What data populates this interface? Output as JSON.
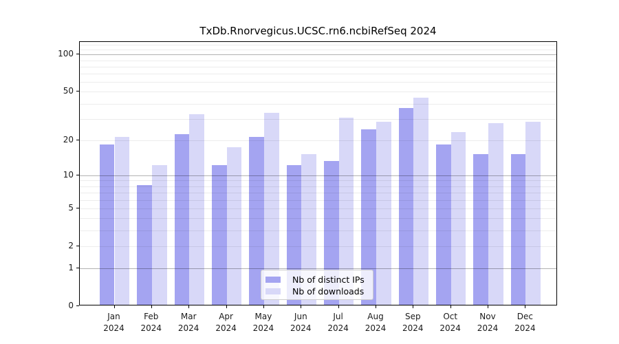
{
  "title": "TxDb.Rnorvegicus.UCSC.rn6.ncbiRefSeq 2024",
  "chart_data": {
    "type": "bar",
    "title": "TxDb.Rnorvegicus.UCSC.rn6.ncbiRefSeq 2024",
    "categories": [
      "Jan",
      "Feb",
      "Mar",
      "Apr",
      "May",
      "Jun",
      "Jul",
      "Aug",
      "Sep",
      "Oct",
      "Nov",
      "Dec"
    ],
    "category_subline": "2024",
    "series": [
      {
        "name": "Nb of distinct IPs",
        "color": "#a4a4f1",
        "values": [
          18,
          8,
          22,
          12,
          21,
          12,
          13,
          24,
          36,
          18,
          15,
          15
        ]
      },
      {
        "name": "Nb of downloads",
        "color": "#d8d8f8",
        "values": [
          21,
          12,
          32,
          17,
          33,
          15,
          30,
          28,
          44,
          23,
          27,
          28
        ]
      }
    ],
    "yscale": "log1p",
    "ylim": [
      0,
      126.4
    ],
    "yticks_labeled": [
      0,
      1,
      2,
      5,
      10,
      20,
      50,
      100
    ],
    "yticks_major_grid": [
      1,
      10,
      100
    ],
    "yticks_minor_grid": [
      3,
      4,
      6,
      7,
      8,
      9,
      30,
      40,
      60,
      70,
      80,
      90,
      110,
      120
    ],
    "grid": true,
    "legend_position": "inside-bottom-center",
    "xlabel": "",
    "ylabel": ""
  },
  "legend": {
    "items": [
      {
        "label": "Nb of distinct IPs",
        "color": "#a4a4f1"
      },
      {
        "label": "Nb of downloads",
        "color": "#d8d8f8"
      }
    ]
  }
}
